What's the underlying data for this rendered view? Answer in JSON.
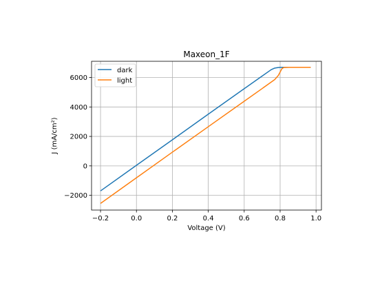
{
  "chart_data": {
    "type": "line",
    "title": "Maxeon_1F",
    "xlabel": "Voltage (V)",
    "ylabel": "J (mA/cm²)",
    "xlim": [
      -0.25,
      1.03
    ],
    "ylim": [
      -3000,
      7100
    ],
    "xticks": [
      -0.2,
      0.0,
      0.2,
      0.4,
      0.6,
      0.8,
      1.0
    ],
    "xtick_labels": [
      "−0.2",
      "0.0",
      "0.2",
      "0.4",
      "0.6",
      "0.8",
      "1.0"
    ],
    "yticks": [
      -2000,
      0,
      2000,
      4000,
      6000
    ],
    "ytick_labels": [
      "−2000",
      "0",
      "2000",
      "4000",
      "6000"
    ],
    "grid": true,
    "legend_position": "upper-left",
    "series": [
      {
        "name": "dark",
        "color": "#1f77b4",
        "x": [
          -0.2,
          0.0,
          0.2,
          0.4,
          0.6,
          0.7,
          0.75,
          0.77,
          0.79,
          0.8,
          0.82,
          0.9,
          0.97
        ],
        "y": [
          -1700,
          40,
          1770,
          3510,
          5240,
          6100,
          6530,
          6640,
          6680,
          6690,
          6690,
          6690,
          6690
        ]
      },
      {
        "name": "light",
        "color": "#ff7f0e",
        "x": [
          -0.2,
          0.0,
          0.2,
          0.4,
          0.6,
          0.7,
          0.77,
          0.79,
          0.81,
          0.82,
          0.85,
          0.9,
          0.97
        ],
        "y": [
          -2550,
          -810,
          930,
          2660,
          4390,
          5250,
          5860,
          6140,
          6600,
          6680,
          6690,
          6690,
          6690
        ]
      }
    ]
  }
}
